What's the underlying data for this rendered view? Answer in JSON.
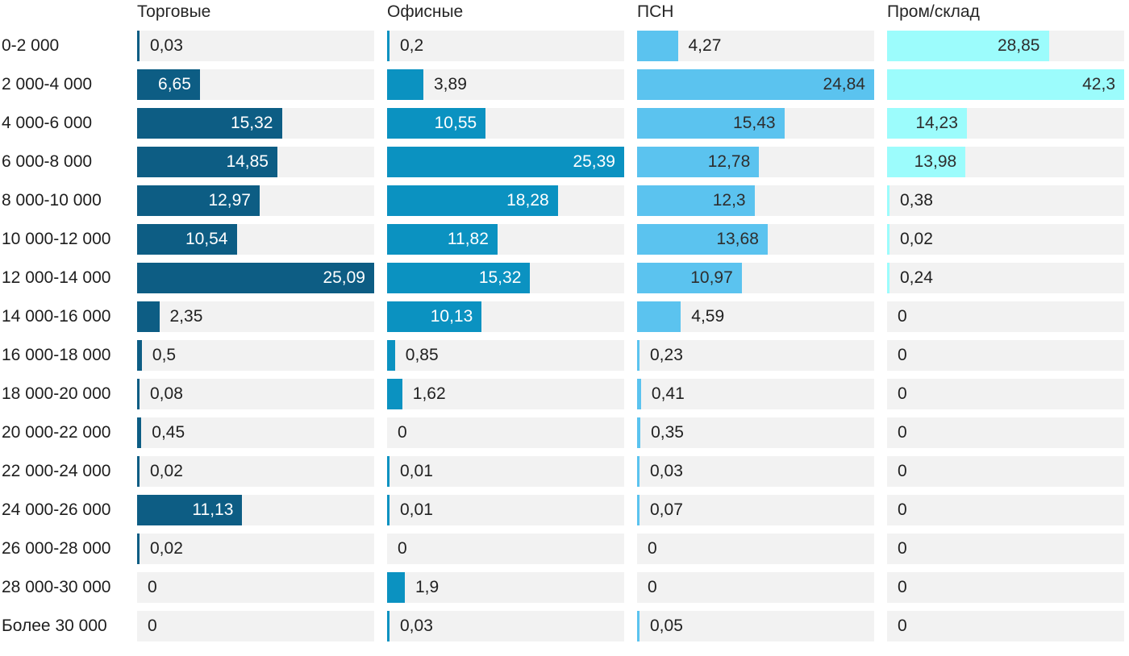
{
  "chart_data": {
    "type": "bar",
    "orientation": "horizontal",
    "title": "",
    "decimal_separator": ",",
    "grid": false,
    "legend_position": "column-headers-top",
    "scale_note": "each column scaled independently to its own max value",
    "cell_background": "#f2f2f2",
    "text_color": "#212121",
    "categories": [
      "0-2 000",
      "2 000-4 000",
      "4 000-6 000",
      "6 000-8 000",
      "8 000-10 000",
      "10 000-12 000",
      "12 000-14 000",
      "14 000-16 000",
      "16 000-18 000",
      "18 000-20 000",
      "20 000-22 000",
      "22 000-24 000",
      "24 000-26 000",
      "26 000-28 000",
      "28 000-30 000",
      "Более 30 000"
    ],
    "series": [
      {
        "name": "Торговые",
        "color": "#0d5d84",
        "inside_label_color": "#ffffff",
        "max": 25.09,
        "values": [
          0.03,
          6.65,
          15.32,
          14.85,
          12.97,
          10.54,
          25.09,
          2.35,
          0.5,
          0.08,
          0.45,
          0.02,
          11.13,
          0.02,
          0,
          0
        ],
        "displays": [
          "0,03",
          "6,65",
          "15,32",
          "14,85",
          "12,97",
          "10,54",
          "25,09",
          "2,35",
          "0,5",
          "0,08",
          "0,45",
          "0,02",
          "11,13",
          "0,02",
          "0",
          "0"
        ]
      },
      {
        "name": "Офисные",
        "color": "#0b92c1",
        "inside_label_color": "#ffffff",
        "max": 25.39,
        "values": [
          0.2,
          3.89,
          10.55,
          25.39,
          18.28,
          11.82,
          15.32,
          10.13,
          0.85,
          1.62,
          0,
          0.01,
          0.01,
          0,
          1.9,
          0.03
        ],
        "displays": [
          "0,2",
          "3,89",
          "10,55",
          "25,39",
          "18,28",
          "11,82",
          "15,32",
          "10,13",
          "0,85",
          "1,62",
          "0",
          "0,01",
          "0,01",
          "0",
          "1,9",
          "0,03"
        ]
      },
      {
        "name": "ПСН",
        "color": "#5bc3ef",
        "inside_label_color": "#2e2e2e",
        "max": 24.84,
        "values": [
          4.27,
          24.84,
          15.43,
          12.78,
          12.3,
          13.68,
          10.97,
          4.59,
          0.23,
          0.41,
          0.35,
          0.03,
          0.07,
          0,
          0,
          0.05
        ],
        "displays": [
          "4,27",
          "24,84",
          "15,43",
          "12,78",
          "12,3",
          "13,68",
          "10,97",
          "4,59",
          "0,23",
          "0,41",
          "0,35",
          "0,03",
          "0,07",
          "0",
          "0",
          "0,05"
        ]
      },
      {
        "name": "Пром/склад",
        "color": "#9cfcfc",
        "inside_label_color": "#2e2e2e",
        "max": 42.3,
        "values": [
          28.85,
          42.3,
          14.23,
          13.98,
          0.38,
          0.02,
          0.24,
          0,
          0,
          0,
          0,
          0,
          0,
          0,
          0,
          0
        ],
        "displays": [
          "28,85",
          "42,3",
          "14,23",
          "13,98",
          "0,38",
          "0,02",
          "0,24",
          "0",
          "0",
          "0",
          "0",
          "0",
          "0",
          "0",
          "0",
          "0"
        ]
      }
    ]
  }
}
